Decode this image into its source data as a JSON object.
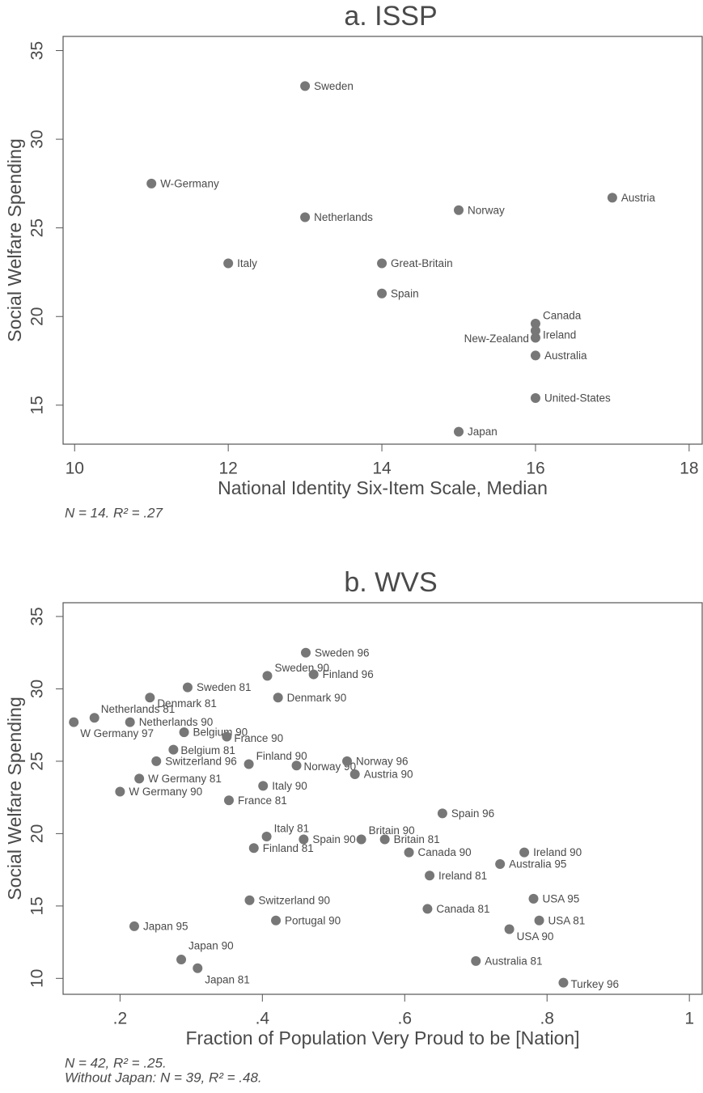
{
  "chart_data": [
    {
      "type": "scatter",
      "title": "a. ISSP",
      "x_label": "National Identity Six-Item Scale, Median",
      "y_label": "Social Welfare Spending",
      "notes": [
        "N = 14. R² = .27"
      ],
      "color": "#777777",
      "labels": [
        "Sweden",
        "W-Germany",
        "Netherlands",
        "Norway",
        "Austria",
        "Italy",
        "Great-Britain",
        "Spain",
        "Canada",
        "Ireland",
        "New-Zealand",
        "Australia",
        "United-States",
        "Japan"
      ],
      "x": [
        13,
        11,
        13,
        15,
        17,
        12,
        14,
        14,
        16,
        16,
        16,
        16,
        16,
        15
      ],
      "values": [
        33.0,
        27.5,
        25.6,
        26.0,
        26.7,
        23.0,
        23.0,
        21.3,
        19.6,
        19.2,
        18.8,
        17.8,
        15.4,
        13.5
      ],
      "xlim": [
        9.85,
        18.17
      ],
      "xticks": [
        10,
        12,
        14,
        16,
        18
      ],
      "ylim": [
        12.8,
        35.8
      ],
      "yticks": [
        15,
        20,
        25,
        30,
        35
      ]
    },
    {
      "type": "scatter",
      "title": "b. WVS",
      "x_label": "Fraction of Population Very Proud to be [Nation]",
      "y_label": "Social Welfare Spending",
      "notes": [
        "N = 42, R² = .25.",
        "Without Japan: N = 39, R² = .48."
      ],
      "color": "#777777",
      "labels": [
        "Sweden 96",
        "Sweden 90",
        "Finland 96",
        "Sweden 81",
        "Denmark 81",
        "Denmark 90",
        "Netherlands 81",
        "W Germany 97",
        "Netherlands 90",
        "Belgium 90",
        "France 90",
        "Belgium 81",
        "Switzerland 96",
        "Finland 90",
        "Norway 90",
        "Norway 96",
        "Austria 90",
        "W Germany 81",
        "Italy 90",
        "W Germany 90",
        "France 81",
        "Spain 96",
        "Italy 81",
        "Finland 81",
        "Spain 90",
        "Britain 90",
        "Britain 81",
        "Canada 90",
        "Ireland 90",
        "Australia 95",
        "Ireland 81",
        "Switzerland 90",
        "USA 95",
        "Canada 81",
        "Portugal 90",
        "USA 81",
        "USA 90",
        "Japan 95",
        "Japan 90",
        "Japan 81",
        "Australia 81",
        "Turkey 96"
      ],
      "x": [
        0.461,
        0.407,
        0.472,
        0.295,
        0.242,
        0.422,
        0.164,
        0.135,
        0.214,
        0.29,
        0.35,
        0.275,
        0.251,
        0.381,
        0.448,
        0.519,
        0.53,
        0.227,
        0.401,
        0.2,
        0.353,
        0.653,
        0.406,
        0.388,
        0.458,
        0.539,
        0.572,
        0.606,
        0.768,
        0.734,
        0.635,
        0.382,
        0.781,
        0.632,
        0.419,
        0.789,
        0.747,
        0.22,
        0.286,
        0.309,
        0.7,
        0.823
      ],
      "values": [
        32.5,
        30.9,
        31.0,
        30.1,
        29.4,
        29.4,
        28.0,
        27.7,
        27.7,
        27.0,
        26.7,
        25.8,
        25.0,
        24.8,
        24.7,
        25.0,
        24.1,
        23.8,
        23.3,
        22.9,
        22.3,
        21.4,
        19.8,
        19.0,
        19.6,
        19.6,
        19.6,
        18.7,
        18.7,
        17.9,
        17.1,
        15.4,
        15.5,
        14.8,
        14.0,
        14.0,
        13.4,
        13.6,
        11.3,
        10.7,
        11.2,
        9.7
      ],
      "xlim": [
        0.12,
        1.018
      ],
      "xticks": [
        {
          "value": 0.2,
          "label": ".2"
        },
        {
          "value": 0.4,
          "label": ".4"
        },
        {
          "value": 0.6,
          "label": ".6"
        },
        {
          "value": 0.8,
          "label": ".8"
        },
        1
      ],
      "ylim": [
        8.9,
        35.95
      ],
      "yticks": [
        10,
        15,
        20,
        25,
        30,
        35
      ]
    }
  ]
}
